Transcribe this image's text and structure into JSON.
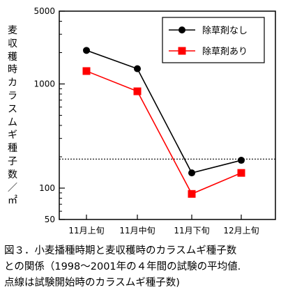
{
  "chart_data": {
    "type": "line",
    "y_scale": "log",
    "ylim": [
      50,
      5000
    ],
    "y_ticks": [
      "5000",
      "1000",
      "100",
      "50"
    ],
    "ylabel": "麦収穫時カラスムギ種子数／㎡",
    "categories": [
      "11月上旬",
      "11月中旬",
      "11月下旬",
      "12月上旬"
    ],
    "series": [
      {
        "name": "除草剤なし",
        "values": [
          2100,
          1400,
          140,
          185
        ],
        "color": "#000000",
        "marker": "circle"
      },
      {
        "name": "除草剤あり",
        "values": [
          1330,
          850,
          88,
          140
        ],
        "color": "#ff0000",
        "marker": "square"
      }
    ],
    "reference_line": {
      "value": 190,
      "style": "dotted"
    },
    "legend_position": "top-right",
    "grid": false
  },
  "caption": {
    "line1": "図３．小麦播種時期と麦収穫時のカラスムギ種子数",
    "line2": "との関係（1998～2001年の４年間の試験の平均値.",
    "line3": "点線は試験開始時のカラスムギ種子数)"
  }
}
